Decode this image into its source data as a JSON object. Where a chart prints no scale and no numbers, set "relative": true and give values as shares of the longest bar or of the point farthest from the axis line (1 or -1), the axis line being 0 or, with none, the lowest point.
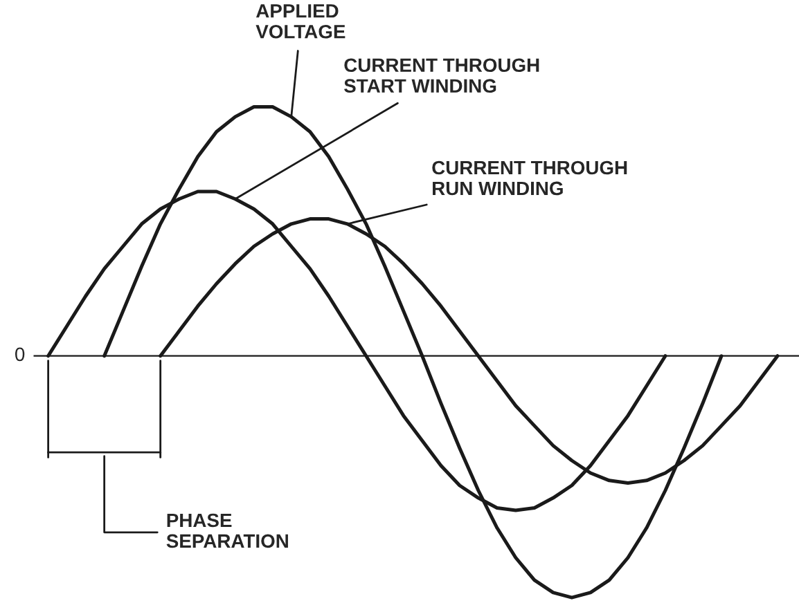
{
  "chart_data": {
    "type": "line",
    "relative": true,
    "marker": "none",
    "line_style": "solid",
    "categories": [
      null,
      null,
      null,
      null,
      null,
      null,
      null,
      null,
      null,
      null,
      null,
      null,
      null,
      null,
      null,
      null,
      null,
      null,
      null,
      null,
      null,
      null,
      null,
      null,
      null,
      null,
      null,
      null,
      null,
      null,
      null,
      null,
      null,
      null,
      null,
      null,
      null,
      null,
      null,
      null
    ],
    "series": [
      {
        "name": "APPLIED\nVOLTAGE",
        "color": "#1a1a1a",
        "values": [
          null,
          null,
          null,
          0,
          0.18,
          0.36,
          0.53,
          0.67,
          0.8,
          0.9,
          0.96,
          1,
          1,
          0.96,
          0.9,
          0.8,
          0.67,
          0.53,
          0.36,
          0.18,
          0,
          -0.19,
          -0.37,
          -0.54,
          -0.69,
          -0.81,
          -0.9,
          -0.95,
          -0.97,
          -0.95,
          -0.9,
          -0.81,
          -0.69,
          -0.54,
          -0.37,
          -0.19,
          0,
          null,
          null,
          null
        ]
      },
      {
        "name": "CURRENT THROUGH\nSTART WINDING",
        "color": "#1a1a1a",
        "values": [
          0,
          0.12,
          0.24,
          0.35,
          0.44,
          0.53,
          0.59,
          0.63,
          0.66,
          0.66,
          0.63,
          0.59,
          0.53,
          0.44,
          0.35,
          0.24,
          0.12,
          0,
          -0.12,
          -0.24,
          -0.34,
          -0.44,
          -0.52,
          -0.57,
          -0.61,
          -0.62,
          -0.61,
          -0.57,
          -0.52,
          -0.44,
          -0.34,
          -0.24,
          -0.12,
          0,
          null,
          null,
          null,
          null,
          null,
          null
        ]
      },
      {
        "name": "CURRENT THROUGH\nRUN WINDING",
        "color": "#1a1a1a",
        "values": [
          null,
          null,
          null,
          null,
          null,
          null,
          0,
          0.1,
          0.2,
          0.29,
          0.37,
          0.44,
          0.49,
          0.53,
          0.55,
          0.55,
          0.53,
          0.49,
          0.44,
          0.37,
          0.29,
          0.2,
          0.1,
          0,
          -0.1,
          -0.2,
          -0.28,
          -0.36,
          -0.42,
          -0.47,
          -0.5,
          -0.51,
          -0.5,
          -0.47,
          -0.42,
          -0.36,
          -0.28,
          -0.2,
          -0.1,
          0
        ]
      }
    ],
    "annotations": [
      "0",
      "PHASE\nSEPARATION"
    ]
  }
}
